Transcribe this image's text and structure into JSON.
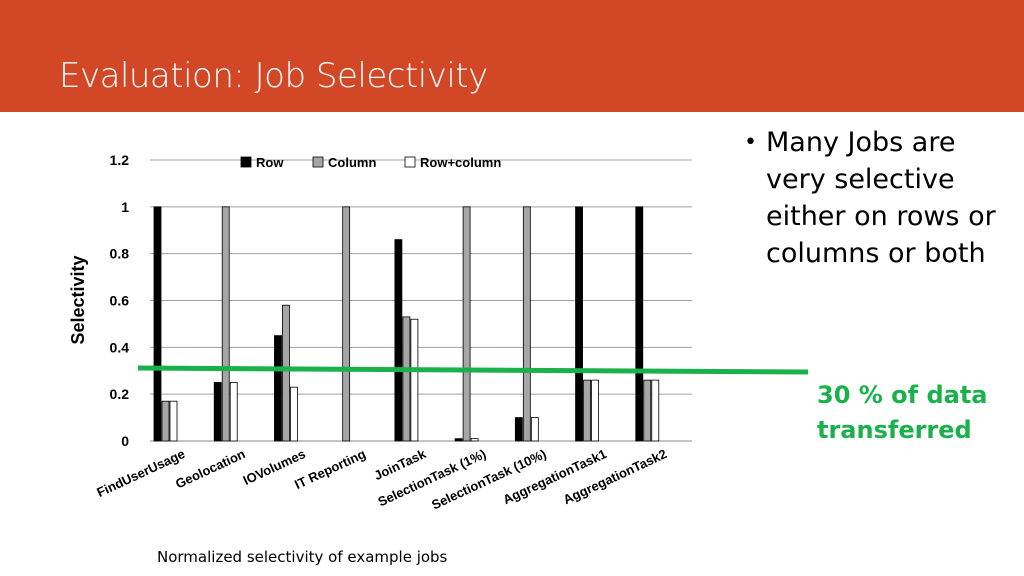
{
  "slide": {
    "title": "Evaluation: Job Selectivity",
    "bullets": [
      "Many Jobs are very selective either on rows or columns or both"
    ],
    "annotation": "30 % of data transferred",
    "caption": "Normalized selectivity of example jobs",
    "colors": {
      "header": "#d24726",
      "annotation": "#1ab04c"
    }
  },
  "chart_data": {
    "type": "bar",
    "ylabel": "Selectivity",
    "xlabel": "",
    "ylim": [
      0,
      1.2
    ],
    "yticks": [
      0,
      0.2,
      0.4,
      0.6,
      0.8,
      1,
      1.2
    ],
    "ytick_labels": [
      "0",
      "0.2",
      "0.4",
      "0.6",
      "0.8",
      "1",
      "1.2"
    ],
    "grid": true,
    "legend_position": "top",
    "categories": [
      "FindUserUsage",
      "Geolocation",
      "IOVolumes",
      "IT Reporting",
      "JoinTask",
      "SelectionTask (1%)",
      "SelectionTask (10%)",
      "AggregationTask1",
      "AggregationTask2"
    ],
    "series": [
      {
        "name": "Row",
        "color": "#000000",
        "values": [
          1,
          0.25,
          0.45,
          0,
          0.86,
          0.01,
          0.1,
          1,
          1
        ]
      },
      {
        "name": "Column",
        "color": "#a6a6a6",
        "values": [
          0.17,
          1,
          0.58,
          1,
          0.53,
          1,
          1,
          0.26,
          0.26
        ]
      },
      {
        "name": "Row+column",
        "color": "#ffffff",
        "values": [
          0.17,
          0.25,
          0.23,
          0,
          0.52,
          0.01,
          0.1,
          0.26,
          0.26
        ]
      }
    ],
    "reference_line": {
      "value": 0.3,
      "color": "#1ab04c"
    }
  }
}
